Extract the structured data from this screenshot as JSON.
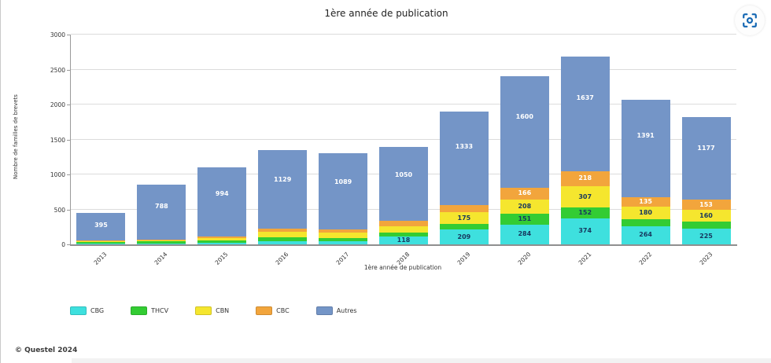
{
  "page": {
    "title": "1ère année de publication",
    "footer": "© Questel 2024",
    "accent_blue": "#1467b3"
  },
  "chart_data": {
    "type": "bar",
    "stacked": true,
    "title": "1ère année de publication",
    "xlabel": "1ère année de publication",
    "ylabel": "Nombre de familles de brevets",
    "ylim": [
      0,
      3000
    ],
    "ytick_interval": 500,
    "grid": true,
    "legend_position": "bottom-left",
    "label_min_value_to_show": 112,
    "axis_color": "#9a9a9a",
    "grid_color": "#dcdcdc",
    "categories": [
      "2013",
      "2014",
      "2015",
      "2016",
      "2017",
      "2018",
      "2019",
      "2020",
      "2021",
      "2022",
      "2023"
    ],
    "series": [
      {
        "name": "CBG",
        "color": "#3ee0de",
        "label_color": "#17375e",
        "values": [
          10,
          12,
          25,
          50,
          45,
          118,
          209,
          284,
          374,
          264,
          225
        ]
      },
      {
        "name": "THCV",
        "color": "#33cc33",
        "label_color": "#17375e",
        "values": [
          25,
          30,
          35,
          55,
          40,
          55,
          80,
          151,
          152,
          95,
          105
        ]
      },
      {
        "name": "CBN",
        "color": "#f5e62e",
        "label_color": "#17375e",
        "values": [
          12,
          15,
          35,
          80,
          80,
          90,
          175,
          208,
          307,
          180,
          160
        ]
      },
      {
        "name": "CBC",
        "color": "#f2a53c",
        "label_color": "#ffffff",
        "values": [
          8,
          10,
          16,
          40,
          45,
          80,
          100,
          166,
          218,
          135,
          153
        ]
      },
      {
        "name": "Autres",
        "color": "#7495c7",
        "label_color": "#ffffff",
        "values": [
          395,
          788,
          994,
          1129,
          1089,
          1050,
          1333,
          1600,
          1637,
          1391,
          1177
        ]
      }
    ]
  }
}
